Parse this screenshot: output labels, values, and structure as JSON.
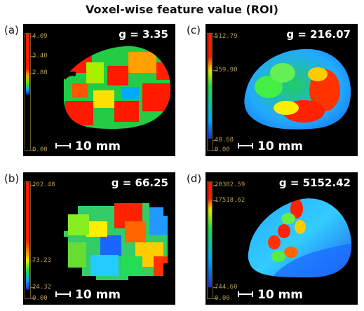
{
  "title": "Voxel-wise feature value (ROI)",
  "panels": [
    {
      "label": "(a)",
      "g": "g = 3.35",
      "scale": "10 mm",
      "ticks": [
        "4.09",
        "3.40",
        "2.80",
        "0.00"
      ],
      "colormap": "jet"
    },
    {
      "label": "(c)",
      "g": "g = 216.07",
      "scale": "10 mm",
      "ticks": [
        "512.79",
        "359.90",
        "40.68",
        "0.00"
      ],
      "colormap": "jet"
    },
    {
      "label": "(b)",
      "g": "g = 66.25",
      "scale": "10 mm",
      "ticks": [
        "202.48",
        "73.23",
        "24.32",
        "0.00"
      ],
      "colormap": "jet"
    },
    {
      "label": "(d)",
      "g": "g = 5152.42",
      "scale": "10 mm",
      "ticks": [
        "20302.59",
        "17518.62",
        "744.60",
        "0.00"
      ],
      "colormap": "jet"
    }
  ]
}
